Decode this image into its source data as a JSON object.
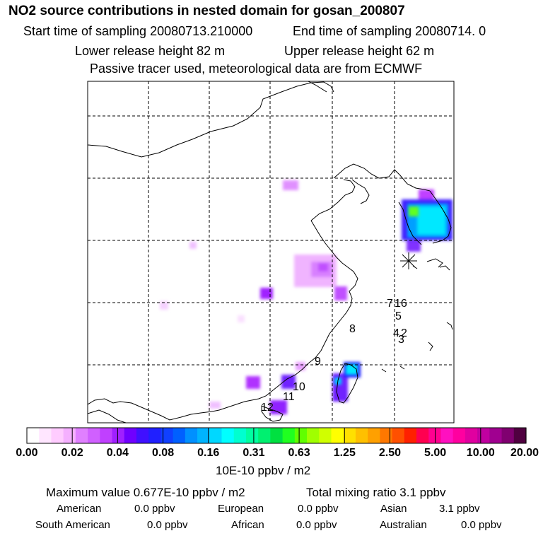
{
  "title": "NO2 source contributions in nested domain for gosan_200807",
  "header": {
    "start_sampling": "Start time of sampling 20080713.210000",
    "end_sampling": "End time of sampling 20080714.     0",
    "lower_release": "Lower release height   82 m",
    "upper_release": "Upper release height   62 m",
    "tracer_note": "Passive tracer used, meteorological data are from ECMWF"
  },
  "map": {
    "track_labels": [
      "7",
      "16",
      "5",
      "4",
      "2",
      "3",
      "8",
      "9",
      "10",
      "11",
      "12"
    ],
    "receptor_marker": "star-cross",
    "colors": {
      "background": "#ffffff",
      "coastline": "#000000",
      "grid": "#000000"
    }
  },
  "colorbar": {
    "ticks": [
      "0.00",
      "0.02",
      "0.04",
      "0.08",
      "0.16",
      "0.31",
      "0.63",
      "1.25",
      "2.50",
      "5.00",
      "10.00",
      "20.00"
    ],
    "unit_label": "10E-10 ppbv / m2",
    "colors": [
      "#ffffff",
      "#ffe6ff",
      "#ffccff",
      "#f5b0ff",
      "#e080ff",
      "#d060ff",
      "#c040ff",
      "#a020ff",
      "#7000ff",
      "#4010ff",
      "#2020ff",
      "#1040ff",
      "#0060ff",
      "#0090ff",
      "#00b4ff",
      "#00d8ff",
      "#00ffff",
      "#00ffd0",
      "#00ffa0",
      "#00f070",
      "#00e040",
      "#20ff20",
      "#60ff00",
      "#a0ff00",
      "#d0ff00",
      "#ffff00",
      "#ffe000",
      "#ffc000",
      "#ffa000",
      "#ff7800",
      "#ff5000",
      "#ff2000",
      "#ff0050",
      "#ff0090",
      "#ff10c0",
      "#ff00a0",
      "#e000a0",
      "#c000a0",
      "#a00090",
      "#800070",
      "#500040"
    ]
  },
  "summary": {
    "max_value": "Maximum value  0.677E-10 ppbv / m2",
    "total_mixing": "Total mixing ratio        3.1 ppbv",
    "regions": [
      {
        "name": "American",
        "value": "0.0 ppbv"
      },
      {
        "name": "European",
        "value": "0.0 ppbv"
      },
      {
        "name": "Asian",
        "value": "3.1 ppbv"
      },
      {
        "name": "South American",
        "value": "0.0 ppbv"
      },
      {
        "name": "African",
        "value": "0.0 ppbv"
      },
      {
        "name": "Australian",
        "value": "0.0 ppbv"
      }
    ]
  }
}
